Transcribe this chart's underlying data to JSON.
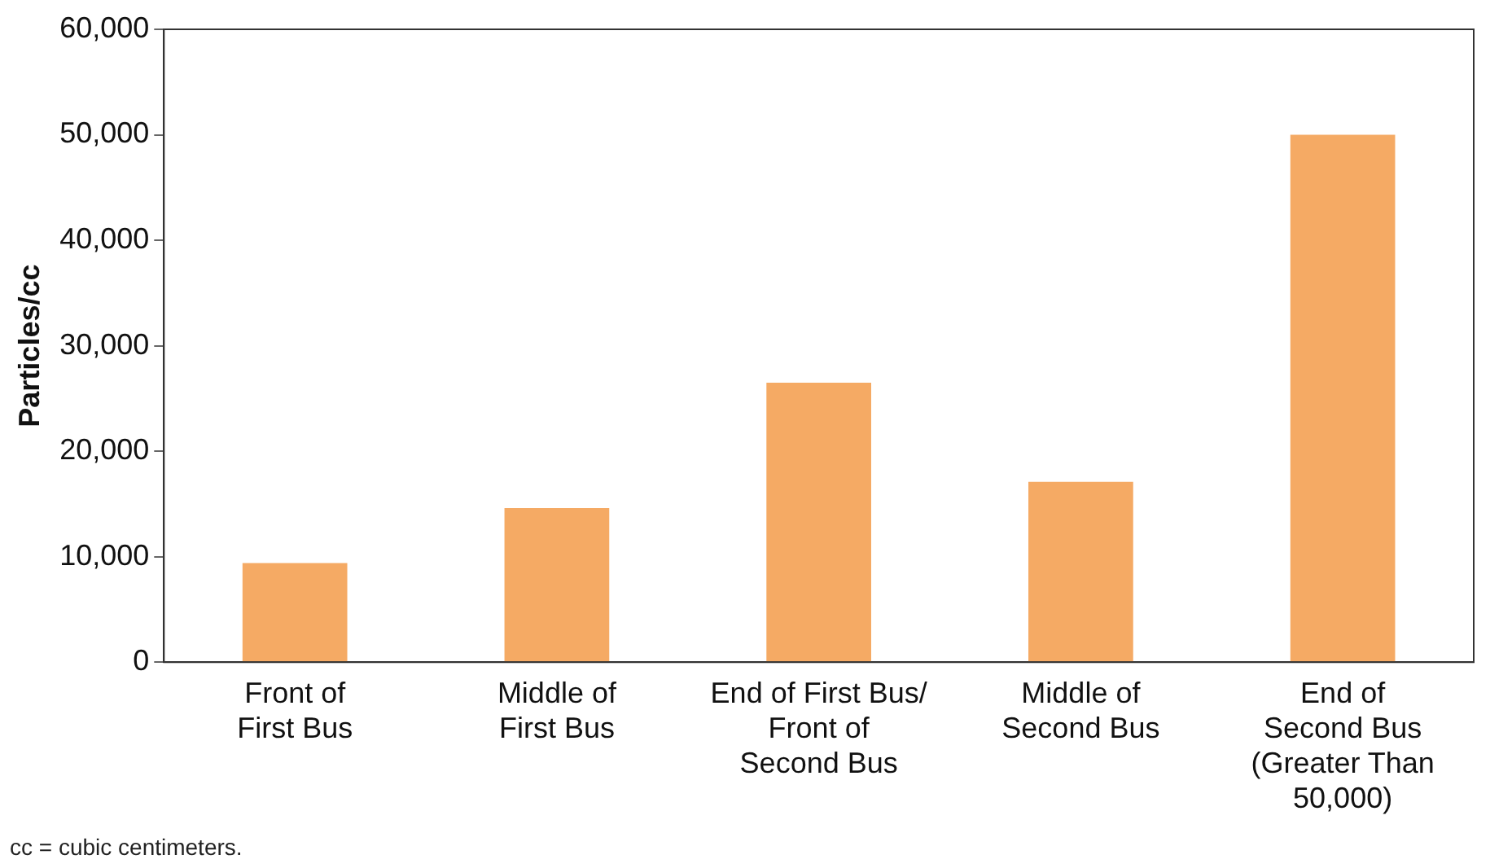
{
  "chart_data": {
    "type": "bar",
    "ylabel": "Particles/cc",
    "categories": [
      "Front of\nFirst Bus",
      "Middle of\nFirst Bus",
      "End of First Bus/\nFront of\nSecond Bus",
      "Middle of\nSecond Bus",
      "End of\nSecond Bus\n(Greater Than\n50,000)"
    ],
    "values": [
      9400,
      14600,
      26500,
      17100,
      50000
    ],
    "color": "#f5aa64",
    "ylim": [
      0,
      60000
    ],
    "yticks": [
      {
        "value": 0,
        "label": "0"
      },
      {
        "value": 10000,
        "label": "10,000"
      },
      {
        "value": 20000,
        "label": "20,000"
      },
      {
        "value": 30000,
        "label": "30,000"
      },
      {
        "value": 40000,
        "label": "40,000"
      },
      {
        "value": 50000,
        "label": "50,000"
      },
      {
        "value": 60000,
        "label": "60,000"
      }
    ],
    "grid": false,
    "legend": false,
    "annotations": [
      "cc = cubic centimeters."
    ]
  }
}
